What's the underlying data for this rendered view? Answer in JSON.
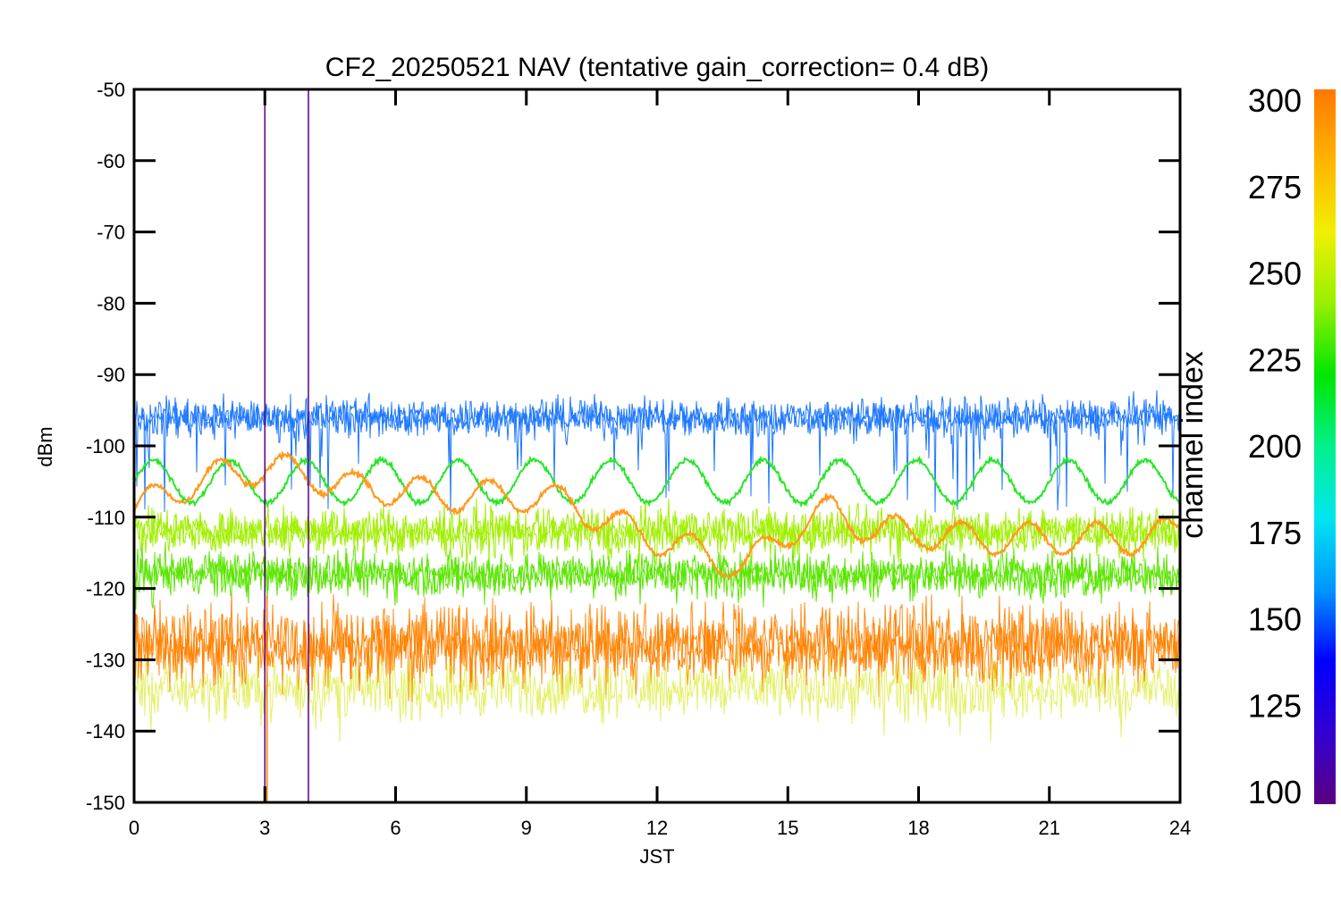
{
  "chart_data": {
    "type": "line",
    "title": "CF2_20250521 NAV (tentative gain_correction=  0.4 dB)",
    "xlabel": "JST",
    "ylabel": "dBm",
    "xlim": [
      0,
      24
    ],
    "ylim": [
      -150,
      -50
    ],
    "x_ticks": [
      0,
      3,
      6,
      9,
      12,
      15,
      18,
      21,
      24
    ],
    "y_ticks": [
      -50,
      -60,
      -70,
      -80,
      -90,
      -100,
      -110,
      -120,
      -130,
      -140,
      -150
    ],
    "grid": false,
    "colorbar": {
      "label": "channel index",
      "range": [
        100,
        300
      ],
      "ticks": [
        300,
        275,
        250,
        225,
        200,
        175,
        150,
        125,
        100
      ],
      "colormap": [
        "#5a0080",
        "#3200d2",
        "#0000ff",
        "#0096ff",
        "#00e6f0",
        "#00f08c",
        "#00e600",
        "#96f000",
        "#f0f000",
        "#ffb400",
        "#ff7800"
      ]
    },
    "series": [
      {
        "channel": 150,
        "color": "#1e78ff",
        "style": "noisy band with downward spikes",
        "mean_dbm": -96,
        "noise_dbm": 2.5
      },
      {
        "channel": 240,
        "color": "#28e628",
        "style": "sinusoidal",
        "mean_dbm": -105,
        "amplitude_dbm": 3,
        "period_hours": 1.75
      },
      {
        "channel": 295,
        "color": "#ff9a1e",
        "style": "sinusoidal with drift",
        "x": [
          0,
          1,
          2,
          3,
          4,
          5,
          6,
          7,
          8,
          9,
          10,
          11,
          12,
          13,
          14,
          15,
          16,
          17,
          18,
          19,
          20,
          21,
          22,
          23,
          24
        ],
        "y": [
          -109,
          -106,
          -104,
          -103,
          -104,
          -106,
          -106,
          -107,
          -107,
          -107,
          -108,
          -111,
          -113,
          -115,
          -117,
          -112,
          -109,
          -112,
          -112,
          -113,
          -113,
          -113,
          -113,
          -113,
          -112
        ]
      },
      {
        "channel": 260,
        "color": "#a0f000",
        "style": "noisy band",
        "mean_dbm": -112,
        "noise_dbm": 3
      },
      {
        "channel": 250,
        "color": "#5ae600",
        "style": "noisy band",
        "mean_dbm": -118,
        "noise_dbm": 3
      },
      {
        "channel": 300,
        "color": "#ff8200",
        "style": "dense noise floor",
        "mean_dbm": -128,
        "noise_dbm": 5
      }
    ],
    "spikes": [
      {
        "x": 3.0,
        "color": "#5a0080",
        "y_top": -50
      },
      {
        "x": 4.0,
        "color": "#5a0080",
        "y_top": -50
      },
      {
        "x": 3.05,
        "color": "#ff7800",
        "y_top": -121
      }
    ]
  }
}
